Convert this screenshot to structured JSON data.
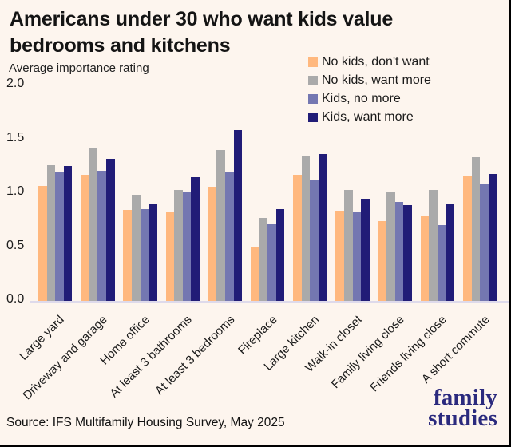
{
  "header": {
    "title_lines": [
      "Americans under 30 who want kids value",
      "bedrooms and kitchens"
    ],
    "subtitle": "Average importance rating"
  },
  "footer": {
    "source": "Source: IFS Multifamily Housing Survey, May 2025",
    "logo_line1": "family",
    "logo_line2": "studies"
  },
  "colors": {
    "background": "#FDF5EE",
    "axis_line": "#DEDAEB",
    "text": "#1a1a1a",
    "logo": "#2B2A7E",
    "border": "#000000"
  },
  "chart_data": {
    "type": "bar",
    "title": "Americans under 30 who want kids value bedrooms and kitchens",
    "subtitle": "Average importance rating",
    "ylabel": "Average importance rating",
    "ylim": [
      0,
      2
    ],
    "yticks": [
      "0.0",
      "0.5",
      "1.0",
      "1.5",
      "2.0"
    ],
    "grid": false,
    "legend_position": "top-right",
    "categories": [
      "Large yard",
      "Driveway and garage",
      "Home office",
      "At least 3 bathrooms",
      "At least 3 bedrooms",
      "Fireplace",
      "Large kitchen",
      "Walk-in closet",
      "Family living close",
      "Friends living close",
      "A short commute"
    ],
    "series": [
      {
        "name": "No kids, don't want",
        "color": "#FFB87E",
        "values": [
          1.06,
          1.16,
          0.84,
          0.82,
          1.05,
          0.5,
          1.16,
          0.83,
          0.74,
          0.78,
          1.15
        ]
      },
      {
        "name": "No kids, want more",
        "color": "#AAAAAA",
        "values": [
          1.25,
          1.41,
          0.98,
          1.02,
          1.39,
          0.77,
          1.33,
          1.02,
          1.0,
          1.02,
          1.32
        ]
      },
      {
        "name": "Kids, no more",
        "color": "#7477B1",
        "values": [
          1.18,
          1.2,
          0.85,
          1.0,
          1.18,
          0.71,
          1.12,
          0.82,
          0.91,
          0.7,
          1.08
        ]
      },
      {
        "name": "Kids, want more",
        "color": "#211C77",
        "values": [
          1.24,
          1.31,
          0.9,
          1.14,
          1.57,
          0.85,
          1.35,
          0.94,
          0.88,
          0.89,
          1.17
        ]
      }
    ]
  }
}
